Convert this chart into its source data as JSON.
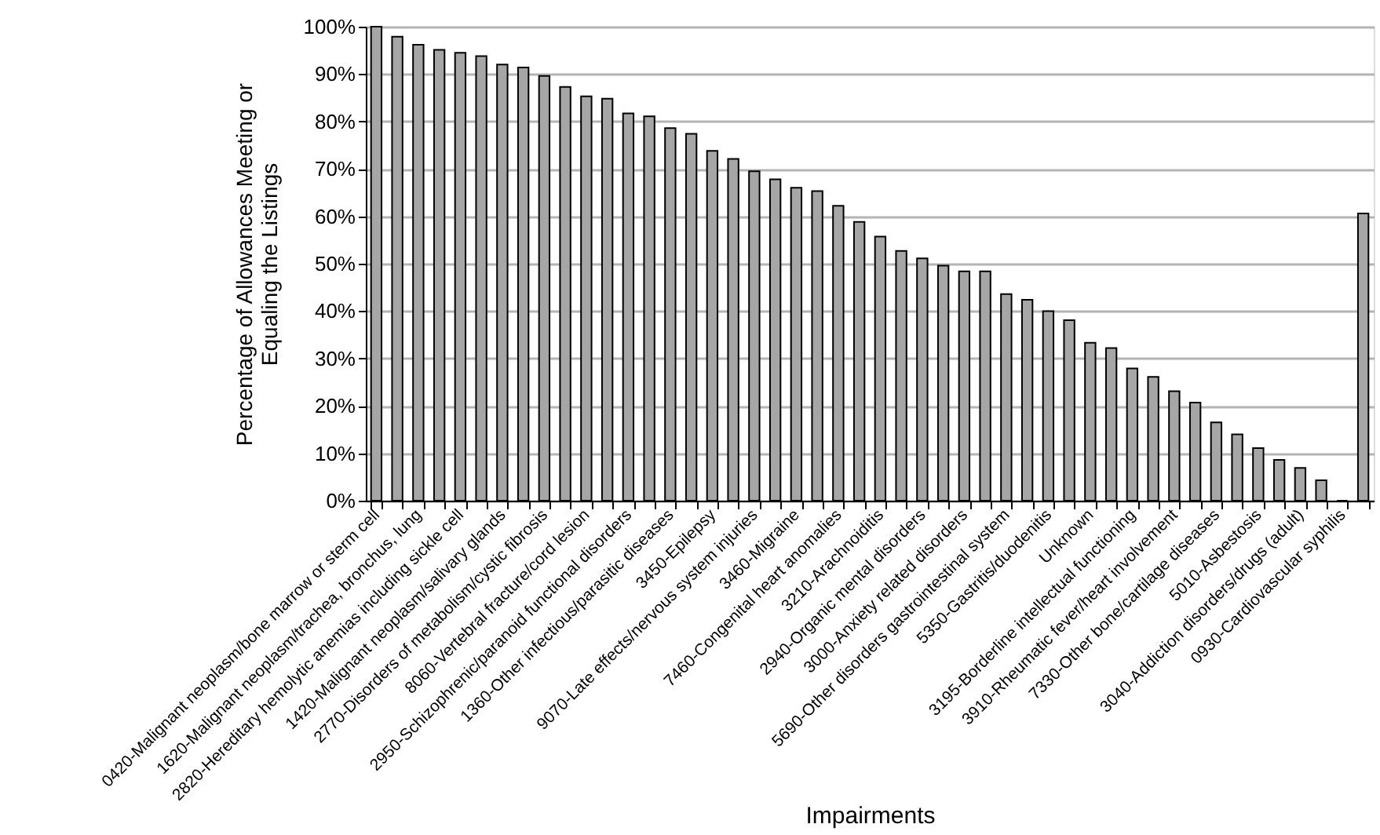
{
  "chart_data": {
    "type": "bar",
    "xlabel": "Impairments",
    "ylabel": "Percentage of Allowances Meeting or\nEqualing the Listings",
    "categories": [
      "0420-Malignant neoplasm/bone marrow or sterm cell",
      null,
      "1620-Malignant neoplasm/trachea, bronchus, lung",
      null,
      "2820-Hereditary hemolytic anemias including sickle cell",
      null,
      "1420-Malignant neoplasm/salivary glands",
      null,
      "2770-Disorders of metabolism/cystic fibrosis",
      null,
      "8060-Vertebral fracture/cord lesion",
      null,
      "2950-Schizophrenic/paranoid functional disorders",
      null,
      "1360-Other infectious/parasitic diseases",
      null,
      "3450-Epilepsy",
      null,
      "9070-Late effects/nervous system injuries",
      null,
      "3460-Migraine",
      null,
      "7460-Congenital heart anomalies",
      null,
      "3210-Arachnoiditis",
      null,
      "2940-Organic mental disorders",
      null,
      "3000-Anxiety related disorders",
      null,
      "5690-Other disorders gastrointestinal system",
      null,
      "5350-Gastritis/duodenitis",
      null,
      "Unknown",
      null,
      "3195-Borderline intellectual functioning",
      null,
      "3910-Rheumatic fever/heart involvement",
      null,
      "7330-Other bone/cartilage diseases",
      null,
      "5010-Asbestosis",
      null,
      "3040-Addiction disorders/drugs (adult)",
      null,
      "0930-Cardiovascular syphilis",
      null
    ],
    "values": [
      100,
      97.9,
      96.2,
      95.1,
      94.5,
      93.8,
      92.0,
      91.4,
      89.6,
      87.3,
      85.3,
      84.8,
      81.7,
      81.1,
      78.6,
      77.4,
      73.8,
      72.1,
      69.5,
      67.8,
      66.0,
      65.3,
      62.2,
      58.8,
      55.7,
      52.7,
      51.1,
      49.6,
      48.4,
      48.4,
      43.6,
      42.4,
      40.0,
      38.1,
      33.3,
      32.2,
      27.9,
      26.1,
      23.1,
      20.7,
      16.5,
      14.0,
      11.1,
      8.6,
      6.9,
      4.3,
      0,
      60.6
    ],
    "color": "#a6a6a6",
    "ylim": [
      0,
      100
    ],
    "yticks": [
      {
        "value": 0,
        "label": "0%"
      },
      {
        "value": 10,
        "label": "10%"
      },
      {
        "value": 20,
        "label": "20%"
      },
      {
        "value": 30,
        "label": "30%"
      },
      {
        "value": 40,
        "label": "40%"
      },
      {
        "value": 50,
        "label": "50%"
      },
      {
        "value": 60,
        "label": "60%"
      },
      {
        "value": 70,
        "label": "70%"
      },
      {
        "value": 80,
        "label": "80%"
      },
      {
        "value": 90,
        "label": "90%"
      },
      {
        "value": 100,
        "label": "100%"
      }
    ],
    "grid": "y"
  }
}
